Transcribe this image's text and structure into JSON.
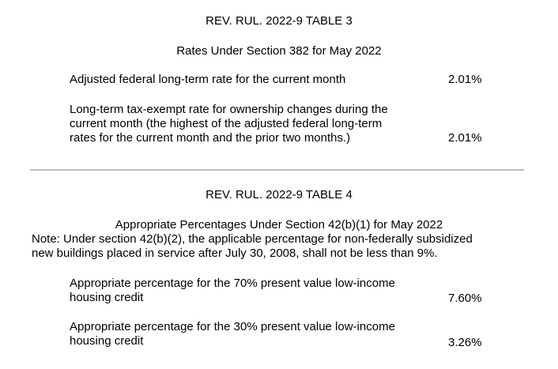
{
  "table3": {
    "title": "REV. RUL. 2022-9 TABLE 3",
    "subtitle": "Rates Under Section 382 for May 2022",
    "rows": [
      {
        "label_lines": [
          "Adjusted federal long-term rate for the current month"
        ],
        "value": "2.01%"
      },
      {
        "label_lines": [
          "Long-term tax-exempt rate for ownership changes during the",
          "current month (the highest of the adjusted federal long-term",
          "rates for the current month and the prior two months.)"
        ],
        "value": "2.01%"
      }
    ]
  },
  "table4": {
    "title": "REV. RUL. 2022-9 TABLE 4",
    "subtitle": "Appropriate Percentages Under Section 42(b)(1) for May 2022",
    "note_lines": [
      "Note: Under section 42(b)(2), the applicable percentage for non-federally subsidized",
      "new buildings placed in service after July 30, 2008, shall not be less than 9%."
    ],
    "rows": [
      {
        "label_lines": [
          "Appropriate percentage for the 70% present value low-income",
          "housing credit"
        ],
        "value": "7.60%"
      },
      {
        "label_lines": [
          "Appropriate percentage for the 30% present value low-income",
          "housing credit"
        ],
        "value": "3.26%"
      }
    ]
  }
}
